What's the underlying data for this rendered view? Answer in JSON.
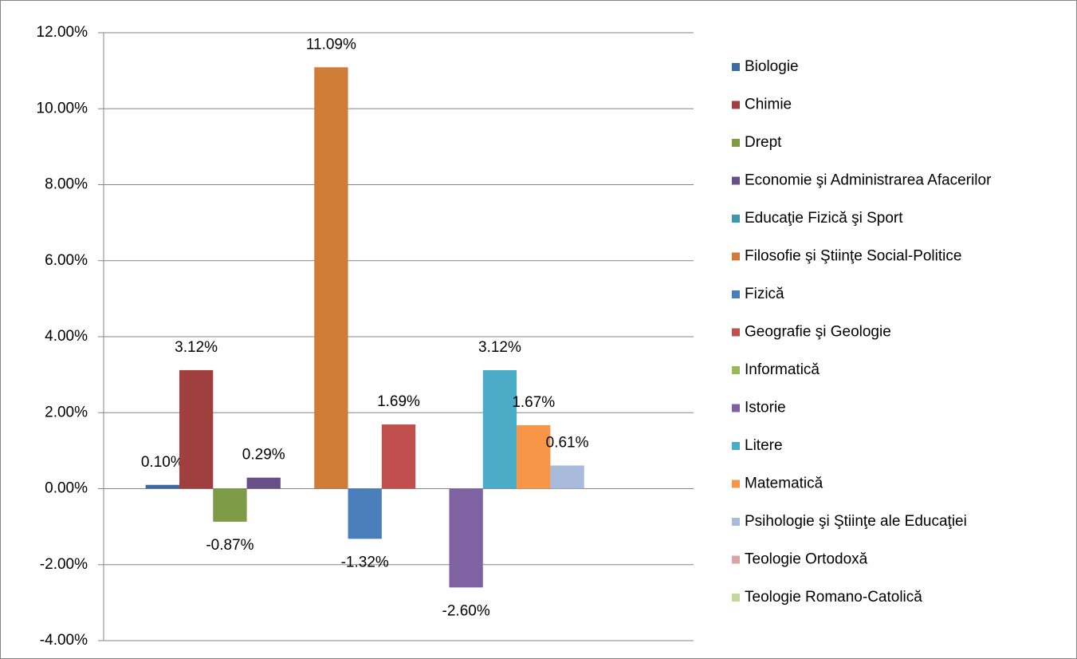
{
  "chart_data": {
    "type": "bar",
    "categories": [
      null
    ],
    "ylim": [
      -4,
      12
    ],
    "yticks": [
      {
        "value": -4,
        "label": "-4.00%"
      },
      {
        "value": -2,
        "label": "-2.00%"
      },
      {
        "value": 0,
        "label": "0.00%"
      },
      {
        "value": 2,
        "label": "2.00%"
      },
      {
        "value": 4,
        "label": "4.00%"
      },
      {
        "value": 6,
        "label": "6.00%"
      },
      {
        "value": 8,
        "label": "8.00%"
      },
      {
        "value": 10,
        "label": "10.00%"
      },
      {
        "value": 12,
        "label": "12.00%"
      }
    ],
    "grid": true,
    "legend": "right",
    "series": [
      {
        "name": "Biologie",
        "color": "#3e6aa4",
        "values": [
          0.1
        ],
        "value_labels": [
          "0.10%"
        ]
      },
      {
        "name": "Chimie",
        "color": "#a0403e",
        "values": [
          3.12
        ],
        "value_labels": [
          "3.12%"
        ]
      },
      {
        "name": "Drept",
        "color": "#7e9b45",
        "values": [
          -0.87
        ],
        "value_labels": [
          "-0.87%"
        ]
      },
      {
        "name": "Economie şi Administrarea Afacerilor",
        "color": "#674f87",
        "values": [
          0.29
        ],
        "value_labels": [
          "0.29%"
        ]
      },
      {
        "name": "Educaţie Fizică şi Sport",
        "color": "#3c98ad",
        "values": [
          null
        ],
        "value_labels": [
          null
        ]
      },
      {
        "name": "Filosofie şi Ştiinţe Social-Politice",
        "color": "#cf7c38",
        "values": [
          11.09
        ],
        "value_labels": [
          "11.09%"
        ]
      },
      {
        "name": "Fizică",
        "color": "#4a7ebb",
        "values": [
          -1.32
        ],
        "value_labels": [
          "-1.32%"
        ]
      },
      {
        "name": "Geografie şi Geologie",
        "color": "#c04f4d",
        "values": [
          1.69
        ],
        "value_labels": [
          "1.69%"
        ]
      },
      {
        "name": "Informatică",
        "color": "#98b954",
        "values": [
          null
        ],
        "value_labels": [
          null
        ]
      },
      {
        "name": "Istorie",
        "color": "#7f62a1",
        "values": [
          -2.6
        ],
        "value_labels": [
          "-2.60%"
        ]
      },
      {
        "name": "Litere",
        "color": "#4aacc6",
        "values": [
          3.12
        ],
        "value_labels": [
          "3.12%"
        ]
      },
      {
        "name": "Matematică",
        "color": "#f79646",
        "values": [
          1.67
        ],
        "value_labels": [
          "1.67%"
        ]
      },
      {
        "name": "Psihologie şi Ştiinţe ale Educaţiei",
        "color": "#a9bbdb",
        "values": [
          0.61
        ],
        "value_labels": [
          "0.61%"
        ]
      },
      {
        "name": "Teologie Ortodoxă",
        "color": "#d9a6a5",
        "values": [
          null
        ],
        "value_labels": [
          null
        ]
      },
      {
        "name": "Teologie Romano-Catolică",
        "color": "#c4d79c",
        "values": [
          null
        ],
        "value_labels": [
          null
        ]
      }
    ]
  }
}
